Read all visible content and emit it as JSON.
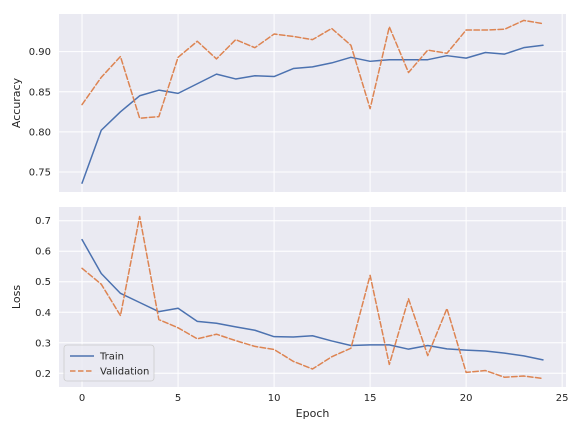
{
  "chart_data": [
    {
      "type": "line",
      "title": "",
      "xlabel": "",
      "ylabel": "Accuracy",
      "x": [
        0,
        1,
        2,
        3,
        4,
        5,
        6,
        7,
        8,
        9,
        10,
        11,
        12,
        13,
        14,
        15,
        16,
        17,
        18,
        19,
        20,
        21,
        22,
        23,
        24
      ],
      "xlim": [
        -1.2,
        25.2
      ],
      "ylim": [
        0.725,
        0.947
      ],
      "xticks": [
        0,
        5,
        10,
        15,
        20,
        25
      ],
      "yticks": [
        0.75,
        0.8,
        0.85,
        0.9
      ],
      "ytick_labels": [
        "0.75",
        "0.80",
        "0.85",
        "0.90"
      ],
      "grid": true,
      "series": [
        {
          "name": "Train",
          "color": "#4c72b0",
          "dash": "solid",
          "values": [
            0.736,
            0.802,
            0.825,
            0.845,
            0.852,
            0.848,
            0.86,
            0.872,
            0.866,
            0.87,
            0.869,
            0.879,
            0.881,
            0.886,
            0.893,
            0.888,
            0.89,
            0.89,
            0.89,
            0.895,
            0.892,
            0.899,
            0.897,
            0.905,
            0.908
          ]
        },
        {
          "name": "Validation",
          "color": "#dd8452",
          "dash": "dashed",
          "values": [
            0.834,
            0.868,
            0.894,
            0.817,
            0.819,
            0.893,
            0.913,
            0.891,
            0.915,
            0.905,
            0.922,
            0.919,
            0.915,
            0.929,
            0.908,
            0.829,
            0.931,
            0.874,
            0.902,
            0.898,
            0.927,
            0.927,
            0.928,
            0.939,
            0.935
          ]
        }
      ]
    },
    {
      "type": "line",
      "title": "",
      "xlabel": "Epoch",
      "ylabel": "Loss",
      "x": [
        0,
        1,
        2,
        3,
        4,
        5,
        6,
        7,
        8,
        9,
        10,
        11,
        12,
        13,
        14,
        15,
        16,
        17,
        18,
        19,
        20,
        21,
        22,
        23,
        24
      ],
      "xlim": [
        -1.2,
        25.2
      ],
      "ylim": [
        0.155,
        0.745
      ],
      "xticks": [
        0,
        5,
        10,
        15,
        20,
        25
      ],
      "yticks": [
        0.2,
        0.3,
        0.4,
        0.5,
        0.6,
        0.7
      ],
      "ytick_labels": [
        "0.2",
        "0.3",
        "0.4",
        "0.5",
        "0.6",
        "0.7"
      ],
      "grid": true,
      "legend": "lower-left",
      "series": [
        {
          "name": "Train",
          "color": "#4c72b0",
          "dash": "solid",
          "values": [
            0.638,
            0.527,
            0.462,
            0.432,
            0.402,
            0.413,
            0.37,
            0.364,
            0.352,
            0.341,
            0.32,
            0.319,
            0.323,
            0.306,
            0.291,
            0.293,
            0.293,
            0.279,
            0.291,
            0.28,
            0.276,
            0.273,
            0.266,
            0.257,
            0.244
          ]
        },
        {
          "name": "Validation",
          "color": "#dd8452",
          "dash": "dashed",
          "values": [
            0.544,
            0.492,
            0.389,
            0.714,
            0.376,
            0.349,
            0.313,
            0.328,
            0.307,
            0.288,
            0.278,
            0.239,
            0.214,
            0.254,
            0.282,
            0.521,
            0.229,
            0.444,
            0.258,
            0.412,
            0.203,
            0.209,
            0.187,
            0.191,
            0.183
          ]
        }
      ]
    }
  ]
}
